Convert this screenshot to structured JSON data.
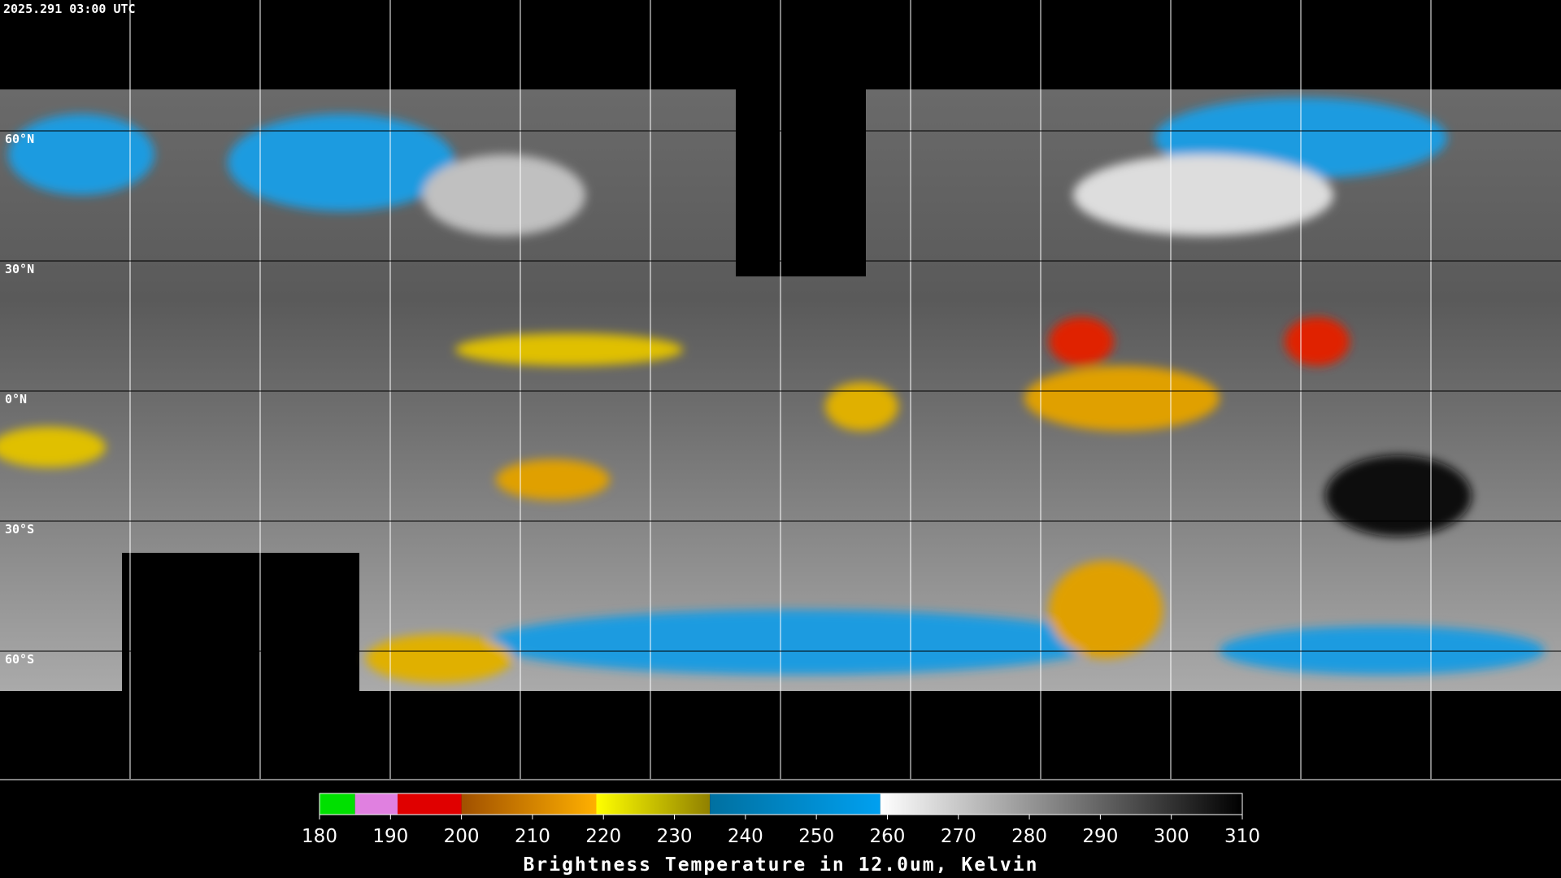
{
  "timestamp": "2025.291 03:00 UTC",
  "latitude_labels": [
    "60°N",
    "30°N",
    "0°N",
    "30°S",
    "60°S"
  ],
  "colorbar": {
    "title": "Brightness Temperature in 12.0um, Kelvin",
    "range": [
      180,
      310
    ],
    "ticks": [
      180,
      190,
      200,
      210,
      220,
      230,
      240,
      250,
      260,
      270,
      280,
      290,
      300,
      310
    ],
    "segments": [
      {
        "from": 180,
        "to": 185,
        "color": "#00e000",
        "color_end": "#00e000"
      },
      {
        "from": 185,
        "to": 191,
        "color": "#e080e0",
        "color_end": "#e080e0"
      },
      {
        "from": 191,
        "to": 200,
        "color": "#e00000",
        "color_end": "#e00000"
      },
      {
        "from": 200,
        "to": 219,
        "color": "#a05000",
        "color_end": "#ffb000"
      },
      {
        "from": 219,
        "to": 235,
        "color": "#ffff00",
        "color_end": "#908000"
      },
      {
        "from": 235,
        "to": 259,
        "color": "#0070a0",
        "color_end": "#00a0f0"
      },
      {
        "from": 259,
        "to": 310,
        "color": "#ffffff",
        "color_end": "#000000"
      }
    ]
  }
}
